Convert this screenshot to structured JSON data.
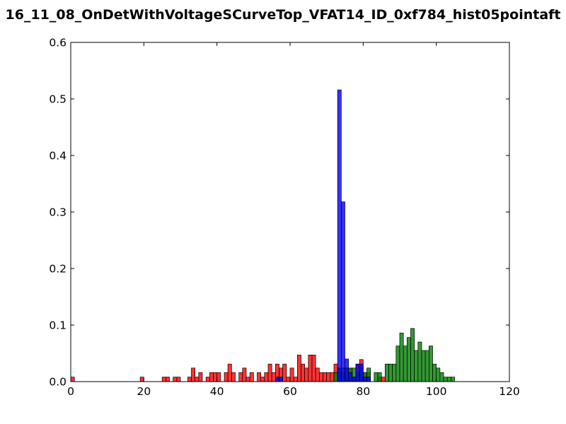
{
  "chart_data": {
    "type": "bar",
    "title": "16_11_08_OnDetWithVoltageSCurveTop_VFAT14_ID_0xf784_hist05pointaft",
    "xlabel": "",
    "ylabel": "",
    "xlim": [
      0,
      120
    ],
    "ylim": [
      0,
      0.6
    ],
    "xticks": [
      0,
      20,
      40,
      60,
      80,
      100,
      120
    ],
    "yticks": [
      0.0,
      0.1,
      0.2,
      0.3,
      0.4,
      0.5,
      0.6
    ],
    "xtick_labels": [
      "0",
      "20",
      "40",
      "60",
      "80",
      "100",
      "120"
    ],
    "ytick_labels": [
      "0.0",
      "0.1",
      "0.2",
      "0.3",
      "0.4",
      "0.5",
      "0.6"
    ],
    "grid": false,
    "bin_width": 1,
    "series": [
      {
        "color": "#ff0000",
        "bins": [
          [
            0,
            0.008
          ],
          [
            19,
            0.008
          ],
          [
            25,
            0.008
          ],
          [
            26,
            0.008
          ],
          [
            28,
            0.008
          ],
          [
            29,
            0.008
          ],
          [
            32,
            0.008
          ],
          [
            33,
            0.024
          ],
          [
            34,
            0.008
          ],
          [
            35,
            0.016
          ],
          [
            37,
            0.008
          ],
          [
            38,
            0.016
          ],
          [
            39,
            0.016
          ],
          [
            40,
            0.016
          ],
          [
            42,
            0.016
          ],
          [
            43,
            0.031
          ],
          [
            44,
            0.016
          ],
          [
            46,
            0.016
          ],
          [
            47,
            0.024
          ],
          [
            48,
            0.008
          ],
          [
            49,
            0.016
          ],
          [
            51,
            0.016
          ],
          [
            52,
            0.008
          ],
          [
            53,
            0.016
          ],
          [
            54,
            0.031
          ],
          [
            55,
            0.016
          ],
          [
            56,
            0.031
          ],
          [
            57,
            0.024
          ],
          [
            58,
            0.031
          ],
          [
            59,
            0.008
          ],
          [
            60,
            0.024
          ],
          [
            61,
            0.008
          ],
          [
            62,
            0.047
          ],
          [
            63,
            0.031
          ],
          [
            64,
            0.024
          ],
          [
            65,
            0.047
          ],
          [
            66,
            0.047
          ],
          [
            67,
            0.024
          ],
          [
            68,
            0.016
          ],
          [
            69,
            0.016
          ],
          [
            70,
            0.016
          ],
          [
            71,
            0.016
          ],
          [
            72,
            0.031
          ],
          [
            73,
            0.024
          ],
          [
            74,
            0.016
          ],
          [
            75,
            0.024
          ],
          [
            76,
            0.024
          ],
          [
            77,
            0.008
          ],
          [
            78,
            0.031
          ],
          [
            79,
            0.039
          ],
          [
            80,
            0.016
          ],
          [
            81,
            0.016
          ],
          [
            84,
            0.008
          ],
          [
            85,
            0.008
          ]
        ]
      },
      {
        "color": "#008000",
        "bins": [
          [
            72,
            0.016
          ],
          [
            73,
            0.024
          ],
          [
            74,
            0.024
          ],
          [
            75,
            0.024
          ],
          [
            76,
            0.024
          ],
          [
            77,
            0.024
          ],
          [
            78,
            0.016
          ],
          [
            79,
            0.024
          ],
          [
            80,
            0.016
          ],
          [
            81,
            0.024
          ],
          [
            83,
            0.016
          ],
          [
            84,
            0.016
          ],
          [
            86,
            0.031
          ],
          [
            87,
            0.031
          ],
          [
            88,
            0.031
          ],
          [
            89,
            0.063
          ],
          [
            90,
            0.086
          ],
          [
            91,
            0.063
          ],
          [
            92,
            0.078
          ],
          [
            93,
            0.094
          ],
          [
            94,
            0.055
          ],
          [
            95,
            0.07
          ],
          [
            96,
            0.055
          ],
          [
            97,
            0.055
          ],
          [
            98,
            0.063
          ],
          [
            99,
            0.031
          ],
          [
            100,
            0.024
          ],
          [
            101,
            0.016
          ],
          [
            102,
            0.008
          ],
          [
            103,
            0.008
          ],
          [
            104,
            0.008
          ]
        ]
      },
      {
        "color": "#0000ff",
        "bins": [
          [
            56,
            0.008
          ],
          [
            57,
            0.008
          ],
          [
            73,
            0.516
          ],
          [
            74,
            0.318
          ],
          [
            75,
            0.04
          ],
          [
            76,
            0.016
          ],
          [
            77,
            0.008
          ],
          [
            78,
            0.031
          ],
          [
            79,
            0.031
          ],
          [
            80,
            0.008
          ],
          [
            81,
            0.008
          ]
        ]
      }
    ]
  }
}
